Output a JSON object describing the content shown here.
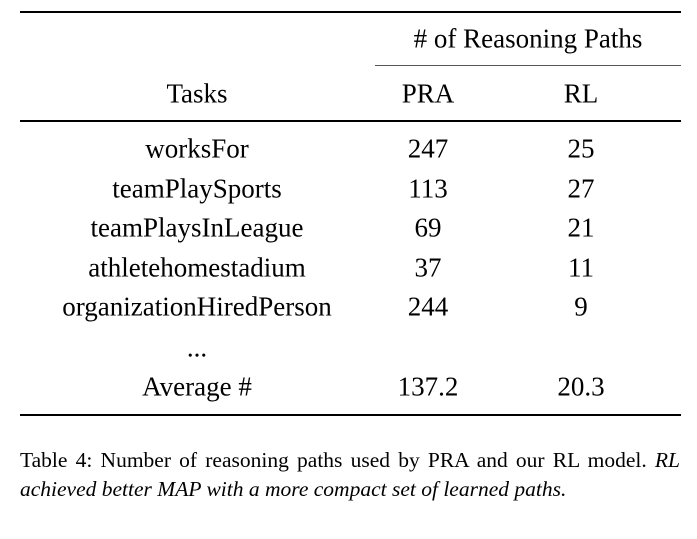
{
  "table": {
    "group_header": "# of Reasoning Paths",
    "columns": [
      "Tasks",
      "PRA",
      "RL"
    ],
    "rows": [
      [
        "worksFor",
        247,
        25
      ],
      [
        "teamPlaySports",
        113,
        27
      ],
      [
        "teamPlaysInLeague",
        69,
        21
      ],
      [
        "athletehomestadium",
        37,
        11
      ],
      [
        "organizationHiredPerson",
        244,
        9
      ]
    ],
    "ellipsis": "...",
    "average": [
      "Average #",
      137.2,
      20.3
    ]
  },
  "caption": {
    "label": "Table 4:",
    "text": "Number of reasoning paths used by PRA and our RL model.",
    "emphasis": "RL achieved better MAP with a more compact set of learned paths."
  }
}
